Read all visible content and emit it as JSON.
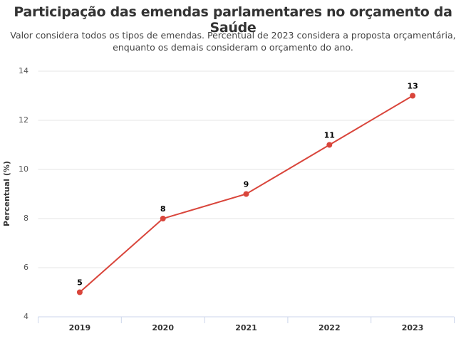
{
  "chart_data": {
    "type": "line",
    "title": "Participação das emendas parlamentares no orçamento da Saúde",
    "subtitle": "Valor considera todos os tipos de emendas. Percentual de 2023 considera a proposta orçamentária, enquanto os demais consideram o orçamento do ano.",
    "y_label": "Percentual (%)",
    "categories": [
      "2019",
      "2020",
      "2021",
      "2022",
      "2023"
    ],
    "series": [
      {
        "color": "#d9453b",
        "values": [
          5,
          8,
          9,
          11,
          13
        ]
      }
    ],
    "ylim": [
      4,
      14
    ],
    "yticks": [
      4,
      6,
      8,
      10,
      12,
      14
    ],
    "grid": true
  }
}
